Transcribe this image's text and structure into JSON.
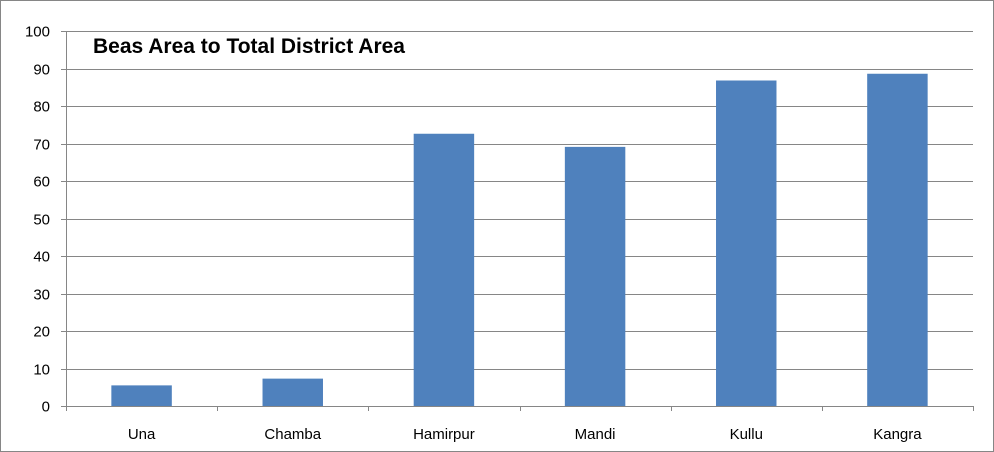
{
  "chart_data": {
    "type": "bar",
    "title": "Beas Area to Total District Area",
    "categories": [
      "Una",
      "Chamba",
      "Hamirpur",
      "Mandi",
      "Kullu",
      "Kangra"
    ],
    "values": [
      5.5,
      7.3,
      72.6,
      69.1,
      86.8,
      88.6
    ],
    "xlabel": "",
    "ylabel": "",
    "ylim": [
      0,
      100
    ],
    "yticks": [
      0,
      10,
      20,
      30,
      40,
      50,
      60,
      70,
      80,
      90,
      100
    ],
    "grid": true,
    "legend": "none",
    "bar_color": "#4F81BD",
    "gridline_color": "#868686"
  }
}
